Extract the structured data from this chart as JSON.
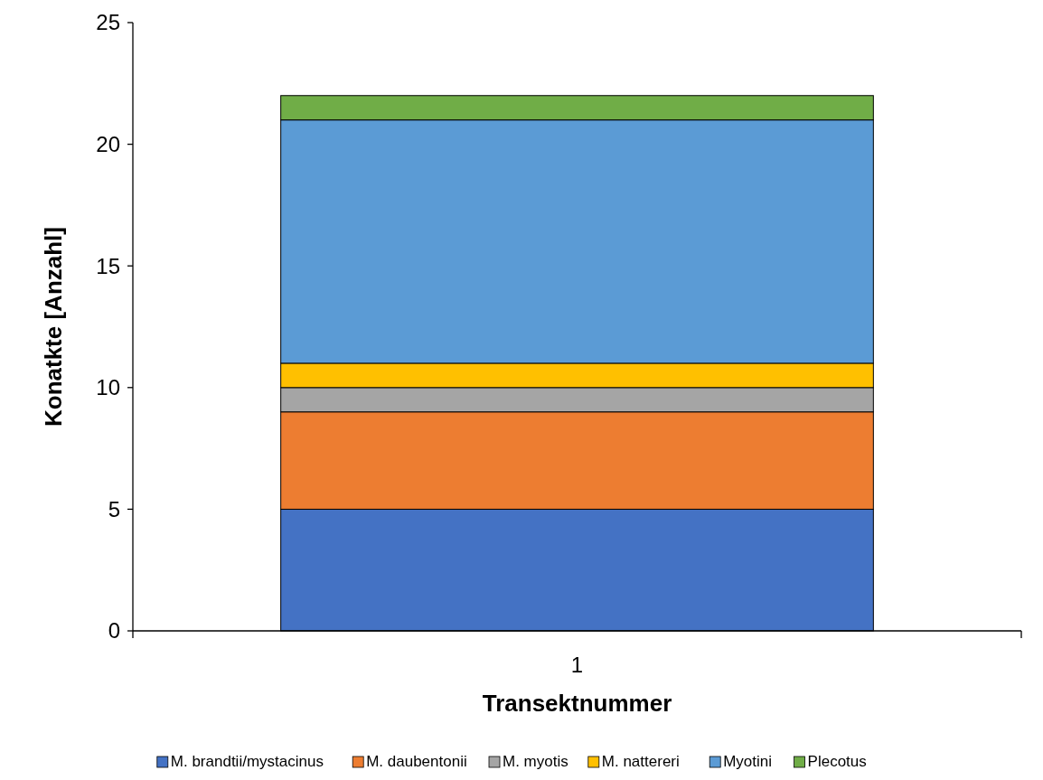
{
  "chart_data": {
    "type": "bar",
    "stacked": true,
    "xlabel": "Transektnummer",
    "ylabel": "Konatkte [Anzahl]",
    "categories": [
      "1"
    ],
    "series": [
      {
        "name": "M. brandtii/mystacinus",
        "color": "#4472c4",
        "values": [
          5
        ]
      },
      {
        "name": "M. daubentonii",
        "color": "#ed7d31",
        "values": [
          4
        ]
      },
      {
        "name": "M. myotis",
        "color": "#a5a5a5",
        "values": [
          1
        ]
      },
      {
        "name": "M. nattereri",
        "color": "#ffc000",
        "values": [
          1
        ]
      },
      {
        "name": "Myotini",
        "color": "#5b9bd5",
        "values": [
          10
        ]
      },
      {
        "name": "Plecotus",
        "color": "#70ad47",
        "values": [
          1
        ]
      }
    ],
    "ylim": [
      0,
      25
    ],
    "yticks": [
      0,
      5,
      10,
      15,
      20,
      25
    ],
    "grid": false,
    "legend": "bottom"
  }
}
